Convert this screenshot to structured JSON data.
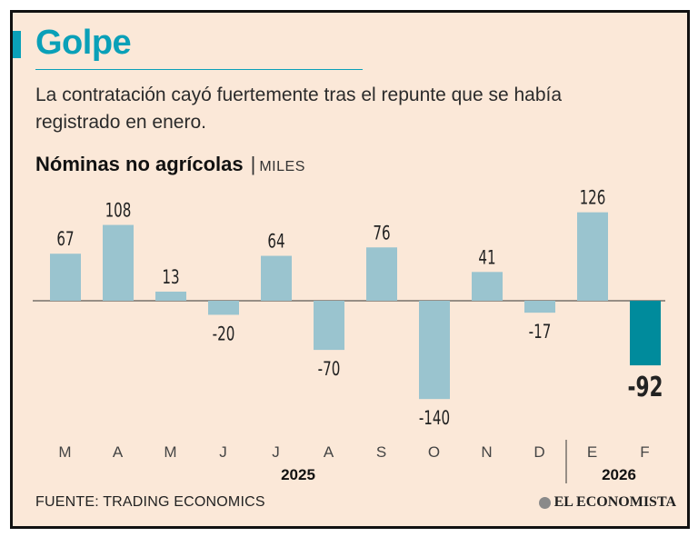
{
  "header": {
    "title": "Golpe",
    "subtitle": "La contratación cayó fuertemente tras el repunte que se había registrado en enero.",
    "chart_title": "Nóminas no agrícolas",
    "separator": "|",
    "unit": "MILES"
  },
  "footer": {
    "source": "FUENTE: TRADING ECONOMICS",
    "logo_text": "EL ECONOMISTA"
  },
  "colors": {
    "background": "#fbe8d8",
    "bar": "#9ac4cf",
    "highlight": "#008b9c",
    "accent": "#0aa0b8"
  },
  "chart_data": {
    "type": "bar",
    "title": "Nóminas no agrícolas",
    "ylabel": "MILES",
    "categories": [
      "M",
      "A",
      "M",
      "J",
      "J",
      "A",
      "S",
      "O",
      "N",
      "D",
      "E",
      "F"
    ],
    "values": [
      67,
      108,
      13,
      -20,
      64,
      -70,
      76,
      -140,
      41,
      -17,
      126,
      -92
    ],
    "value_labels": [
      "67",
      "108",
      "13",
      "-20",
      "64",
      "-70",
      "76",
      "-140",
      "41",
      "-17",
      "126",
      "-92"
    ],
    "highlight_index": 11,
    "year_groups": [
      {
        "label": "2025",
        "start": 0,
        "end": 9
      },
      {
        "label": "2026",
        "start": 10,
        "end": 11
      }
    ],
    "ylim": [
      -140,
      126
    ]
  }
}
